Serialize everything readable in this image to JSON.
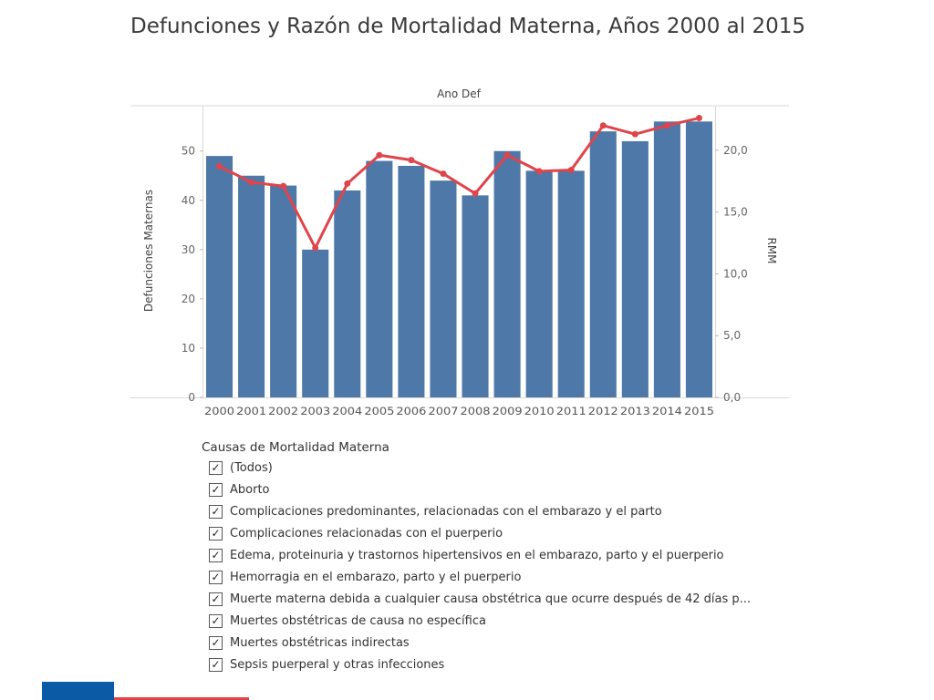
{
  "title": "Defunciones y Razón de Mortalidad Materna, Años 2000 al 2015",
  "chart_data": {
    "type": "bar",
    "title": "",
    "top_label": "Ano Def",
    "xlabel": "",
    "ylabel": "Defunciones Maternas",
    "y2label": "RMM",
    "categories": [
      "2000",
      "2001",
      "2002",
      "2003",
      "2004",
      "2005",
      "2006",
      "2007",
      "2008",
      "2009",
      "2010",
      "2011",
      "2012",
      "2013",
      "2014",
      "2015"
    ],
    "ylim": [
      0,
      59.2
    ],
    "y2lim": [
      0,
      23.6
    ],
    "yticks": [
      0,
      10,
      20,
      30,
      40,
      50
    ],
    "y2ticks": [
      "0,0",
      "5,0",
      "10,0",
      "15,0",
      "20,0"
    ],
    "y2tick_values": [
      0,
      5,
      10,
      15,
      20
    ],
    "grid": false,
    "bar_color": "#4e78a7",
    "line_color": "#e0444b",
    "series": [
      {
        "name": "Defunciones Maternas",
        "type": "bar",
        "axis": "left",
        "values": [
          49,
          45,
          43,
          30,
          42,
          48,
          47,
          44,
          41,
          50,
          46,
          46,
          54,
          52,
          56,
          56
        ]
      },
      {
        "name": "RMM",
        "type": "line",
        "axis": "right",
        "values": [
          18.7,
          17.4,
          17.1,
          12.1,
          17.3,
          19.6,
          19.2,
          18.1,
          16.5,
          19.6,
          18.3,
          18.4,
          22.0,
          21.3,
          22.0,
          22.6
        ]
      }
    ]
  },
  "filter": {
    "title": "Causas de Mortalidad Materna",
    "items": [
      {
        "label": "(Todos)",
        "checked": true
      },
      {
        "label": "Aborto",
        "checked": true
      },
      {
        "label": "Complicaciones predominantes, relacionadas con el embarazo y el parto",
        "checked": true
      },
      {
        "label": "Complicaciones relacionadas con el puerperio",
        "checked": true
      },
      {
        "label": "Edema, proteinuria y trastornos hipertensivos en el embarazo, parto y el puerperio",
        "checked": true
      },
      {
        "label": "Hemorragia en el embarazo, parto y el puerperio",
        "checked": true
      },
      {
        "label": "Muerte materna debida a cualquier causa obstétrica que ocurre después de 42 días p...",
        "checked": true
      },
      {
        "label": "Muertes obstétricas de causa no específica",
        "checked": true
      },
      {
        "label": "Muertes obstétricas indirectas",
        "checked": true
      },
      {
        "label": "Sepsis puerperal y otras infecciones",
        "checked": true
      }
    ]
  },
  "checkmark": "✓",
  "footer": {
    "blue": "#0a5aa6",
    "red": "#e0444b"
  }
}
